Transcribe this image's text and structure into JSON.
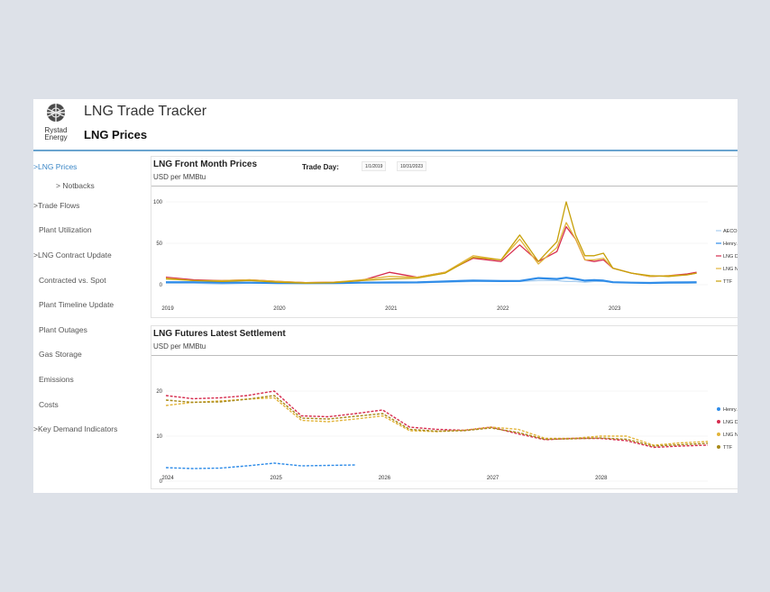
{
  "app": {
    "logo_line1": "Rystad",
    "logo_line2": "Energy",
    "title": "LNG Trade Tracker",
    "page_title": "LNG Prices"
  },
  "sidebar": {
    "items": [
      {
        "label": ">LNG Prices",
        "active": true
      },
      {
        "label": "> Notbacks"
      },
      {
        "label": ">Trade Flows"
      },
      {
        "label": "Plant Utilization"
      },
      {
        "label": ">LNG Contract Update"
      },
      {
        "label": "Contracted vs. Spot"
      },
      {
        "label": "Plant Timeline Update"
      },
      {
        "label": "Plant Outages"
      },
      {
        "label": "Gas Storage"
      },
      {
        "label": "Emissions"
      },
      {
        "label": "Costs"
      },
      {
        "label": ">Key Demand Indicators"
      }
    ]
  },
  "panel1": {
    "title": "LNG Front Month Prices",
    "subtitle": "USD per MMBtu",
    "trade_day_label": "Trade Day:",
    "date_from": "1/1/2019",
    "date_to": "10/31/2023"
  },
  "panel2": {
    "title": "LNG Futures Latest Settlement",
    "subtitle": "USD per MMBtu"
  },
  "colors": {
    "accent": "#3a86c6",
    "aeco": "#a8cdef",
    "henry_hub": "#2f8ce8",
    "lng_des": "#d62c4e",
    "lng_nea": "#e2b43a",
    "ttf": "#c7a008",
    "ttf_futures": "#a88a1a"
  },
  "chart_data": [
    {
      "type": "line",
      "title": "LNG Front Month Prices",
      "ylabel": "USD per MMBtu",
      "ylim": [
        0,
        100
      ],
      "yticks": [
        0,
        50,
        100
      ],
      "xticks": [
        "2019",
        "2020",
        "2021",
        "2022",
        "2023"
      ],
      "x": [
        "2019-01",
        "2019-04",
        "2019-07",
        "2019-10",
        "2020-01",
        "2020-04",
        "2020-07",
        "2020-10",
        "2021-01",
        "2021-04",
        "2021-07",
        "2021-10",
        "2022-01",
        "2022-03",
        "2022-05",
        "2022-07",
        "2022-08",
        "2022-09",
        "2022-10",
        "2022-11",
        "2022-12",
        "2023-01",
        "2023-03",
        "2023-05",
        "2023-07",
        "2023-09",
        "2023-10"
      ],
      "legend": [
        "AECO",
        "Henry...",
        "LNG D...",
        "LNG N...",
        "TTF"
      ],
      "series": [
        {
          "name": "AECO",
          "color": "#a8cdef",
          "values": [
            2,
            2,
            1,
            2,
            2,
            1.5,
            2,
            2.5,
            2.5,
            2.5,
            3,
            4,
            4,
            4,
            5,
            5,
            4,
            4,
            3,
            4,
            4,
            3,
            2.5,
            2,
            2,
            2,
            2
          ]
        },
        {
          "name": "Henry...",
          "color": "#2f8ce8",
          "values": [
            3,
            3,
            2.5,
            2.5,
            2,
            2,
            2,
            2.5,
            2.7,
            2.8,
            4,
            5,
            4.5,
            4.6,
            8,
            7,
            8.5,
            7,
            5,
            5.5,
            5,
            3,
            2.5,
            2.2,
            2.7,
            2.8,
            3
          ]
        },
        {
          "name": "LNG D...",
          "color": "#d62c4e",
          "values": [
            9,
            6,
            5,
            6,
            4,
            2.5,
            3,
            5,
            15,
            9,
            15,
            32,
            28,
            48,
            28,
            40,
            70,
            55,
            30,
            28,
            30,
            20,
            14,
            10,
            11,
            13,
            15
          ]
        },
        {
          "name": "LNG N...",
          "color": "#e2b43a",
          "values": [
            8,
            5,
            5,
            6,
            4,
            2.5,
            3,
            6,
            10,
            9,
            15,
            35,
            30,
            55,
            25,
            45,
            75,
            55,
            30,
            30,
            32,
            20,
            14,
            10,
            11,
            12,
            14
          ]
        },
        {
          "name": "TTF",
          "color": "#c7a008",
          "values": [
            7,
            5,
            4,
            5,
            3,
            2,
            2.5,
            5,
            7,
            8,
            14,
            33,
            30,
            60,
            28,
            52,
            100,
            60,
            35,
            35,
            38,
            20,
            14,
            11,
            10,
            12,
            14
          ]
        }
      ]
    },
    {
      "type": "line",
      "title": "LNG Futures Latest Settlement",
      "ylabel": "USD per MMBtu",
      "ylim": [
        0,
        20
      ],
      "yticks": [
        0,
        10,
        20
      ],
      "xticks": [
        "2024",
        "2025",
        "2026",
        "2027",
        "2028"
      ],
      "x": [
        2024.0,
        2024.25,
        2024.5,
        2024.75,
        2025.0,
        2025.25,
        2025.5,
        2025.75,
        2026.0,
        2026.25,
        2026.5,
        2026.75,
        2027.0,
        2027.25,
        2027.5,
        2027.75,
        2028.0,
        2028.25,
        2028.5,
        2028.75,
        2029.0
      ],
      "legend": [
        "Henry...",
        "LNG D...",
        "LNG N...",
        "TTF"
      ],
      "series": [
        {
          "name": "Henry...",
          "color": "#2f8ce8",
          "values": [
            3,
            2.8,
            2.9,
            3.4,
            4.0,
            3.4,
            3.5,
            3.6,
            null,
            null,
            null,
            null,
            null,
            null,
            null,
            null,
            null,
            null,
            null,
            null,
            null
          ]
        },
        {
          "name": "LNG D...",
          "color": "#d62c4e",
          "values": [
            19,
            18.3,
            18.5,
            19.0,
            20.0,
            14.5,
            14.3,
            15.0,
            15.8,
            12.0,
            11.5,
            11.3,
            12.0,
            10.5,
            9.2,
            9.5,
            9.5,
            9.0,
            7.5,
            7.8,
            8.0
          ]
        },
        {
          "name": "LNG N...",
          "color": "#e2b43a",
          "values": [
            16.8,
            17.5,
            17.8,
            18.2,
            18.5,
            13.5,
            13.2,
            13.8,
            14.5,
            11.2,
            11.0,
            11.3,
            12.0,
            11.5,
            9.5,
            9.5,
            10.0,
            10.0,
            8.0,
            8.5,
            8.8
          ]
        },
        {
          "name": "TTF",
          "color": "#a88a1a",
          "values": [
            18.0,
            17.5,
            17.6,
            18.2,
            19.0,
            14.0,
            13.8,
            14.4,
            15.0,
            11.5,
            11.1,
            11.2,
            11.8,
            10.8,
            9.3,
            9.4,
            9.6,
            9.3,
            7.8,
            8.1,
            8.4
          ]
        }
      ]
    }
  ]
}
